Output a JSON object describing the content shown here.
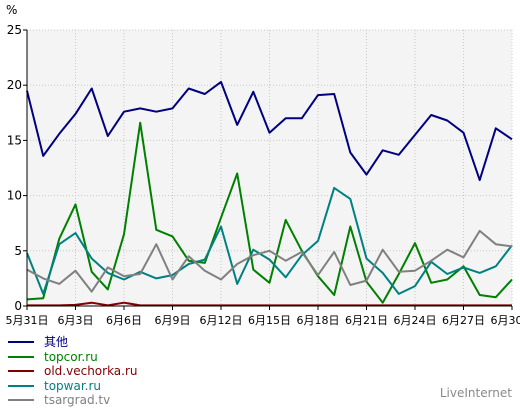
{
  "chart_data": {
    "type": "line",
    "ylabel": "%",
    "ylim": [
      0,
      25
    ],
    "yticks": [
      0,
      5,
      10,
      15,
      20,
      25
    ],
    "grid": true,
    "legend_position": "bottom-left",
    "x": [
      "5月31日",
      "6月1日",
      "6月2日",
      "6月3日",
      "6月4日",
      "6月5日",
      "6月6日",
      "6月7日",
      "6月8日",
      "6月9日",
      "6月10日",
      "6月11日",
      "6月12日",
      "6月13日",
      "6月14日",
      "6月15日",
      "6月16日",
      "6月17日",
      "6月18日",
      "6月19日",
      "6月20日",
      "6月21日",
      "6月22日",
      "6月23日",
      "6月24日",
      "6月25日",
      "6月26日",
      "6月27日",
      "6月28日",
      "6月29日",
      "6月30日"
    ],
    "x_tick_labels": [
      "5月31日",
      "6月3日",
      "6月6日",
      "6月9日",
      "6月12日",
      "6月15日",
      "6月18日",
      "6月21日",
      "6月24日",
      "6月27日",
      "6月30日"
    ],
    "x_tick_step": 3,
    "series": [
      {
        "name": "其他",
        "color": "#000080",
        "values": [
          19.5,
          13.6,
          15.6,
          17.4,
          19.7,
          15.4,
          17.6,
          17.9,
          17.6,
          17.9,
          19.7,
          19.2,
          20.3,
          16.4,
          19.4,
          15.7,
          17.0,
          17.0,
          19.1,
          19.2,
          13.9,
          11.9,
          14.1,
          13.7,
          15.5,
          17.3,
          16.8,
          15.7,
          11.4,
          16.1,
          15.1
        ]
      },
      {
        "name": "topcor.ru",
        "color": "#008000",
        "values": [
          0.6,
          0.7,
          6.1,
          9.2,
          3.1,
          1.5,
          6.5,
          16.6,
          6.9,
          6.3,
          4.1,
          3.9,
          8.0,
          12.0,
          3.3,
          2.1,
          7.8,
          5.0,
          2.7,
          1.0,
          7.2,
          2.2,
          0.3,
          2.9,
          5.7,
          2.1,
          2.4,
          3.6,
          1.0,
          0.8,
          2.4
        ]
      },
      {
        "name": "old.vechorka.ru",
        "color": "#800000",
        "values": [
          0.05,
          0.05,
          0.05,
          0.1,
          0.3,
          0.05,
          0.3,
          0.05,
          0.05,
          0.05,
          0.05,
          0.05,
          0.05,
          0.05,
          0.05,
          0.05,
          0.05,
          0.05,
          0.05,
          0.05,
          0.05,
          0.05,
          0.05,
          0.05,
          0.05,
          0.05,
          0.05,
          0.05,
          0.05,
          0.05,
          0.05
        ]
      },
      {
        "name": "topwar.ru",
        "color": "#008080",
        "values": [
          4.8,
          1.1,
          5.6,
          6.6,
          4.3,
          3.0,
          2.4,
          3.1,
          2.5,
          2.8,
          3.8,
          4.2,
          7.2,
          2.0,
          5.1,
          4.2,
          2.6,
          4.6,
          5.9,
          10.7,
          9.7,
          4.3,
          3.0,
          1.1,
          1.8,
          4.0,
          2.9,
          3.5,
          3.0,
          3.6,
          5.5
        ]
      },
      {
        "name": "tsargrad.tv",
        "color": "#808080",
        "values": [
          3.3,
          2.5,
          2.0,
          3.2,
          1.3,
          3.5,
          2.7,
          2.9,
          5.6,
          2.4,
          4.5,
          3.2,
          2.4,
          3.8,
          4.6,
          5.0,
          4.1,
          4.9,
          2.8,
          4.9,
          1.9,
          2.3,
          5.1,
          3.1,
          3.2,
          4.1,
          5.1,
          4.4,
          6.8,
          5.6,
          5.4
        ]
      }
    ]
  },
  "watermark": "LiveInternet"
}
